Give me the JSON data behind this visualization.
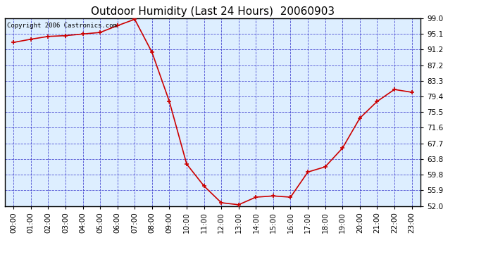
{
  "title": "Outdoor Humidity (Last 24 Hours)  20060903",
  "copyright_text": "Copyright 2006 Castronics.com",
  "x_labels": [
    "00:00",
    "01:00",
    "02:00",
    "03:00",
    "04:00",
    "05:00",
    "06:00",
    "07:00",
    "08:00",
    "09:00",
    "10:00",
    "11:00",
    "12:00",
    "13:00",
    "14:00",
    "15:00",
    "16:00",
    "17:00",
    "18:00",
    "19:00",
    "20:00",
    "21:00",
    "22:00",
    "23:00"
  ],
  "y_ticks": [
    52.0,
    55.9,
    59.8,
    63.8,
    67.7,
    71.6,
    75.5,
    79.4,
    83.3,
    87.2,
    91.2,
    95.1,
    99.0
  ],
  "y_min": 52.0,
  "y_max": 99.0,
  "data_y": [
    93.0,
    93.8,
    94.5,
    94.7,
    95.1,
    95.5,
    97.2,
    98.8,
    90.5,
    78.2,
    62.5,
    57.0,
    52.8,
    52.3,
    54.2,
    54.5,
    54.2,
    60.5,
    61.8,
    66.5,
    74.0,
    78.2,
    81.2,
    80.5
  ],
  "line_color": "#cc0000",
  "marker_color": "#cc0000",
  "fig_bg_color": "#ffffff",
  "plot_bg_color": "#ddeeff",
  "grid_color": "#3333cc",
  "title_fontsize": 11,
  "copyright_fontsize": 6.5,
  "tick_fontsize": 7.5,
  "border_color": "#000000"
}
